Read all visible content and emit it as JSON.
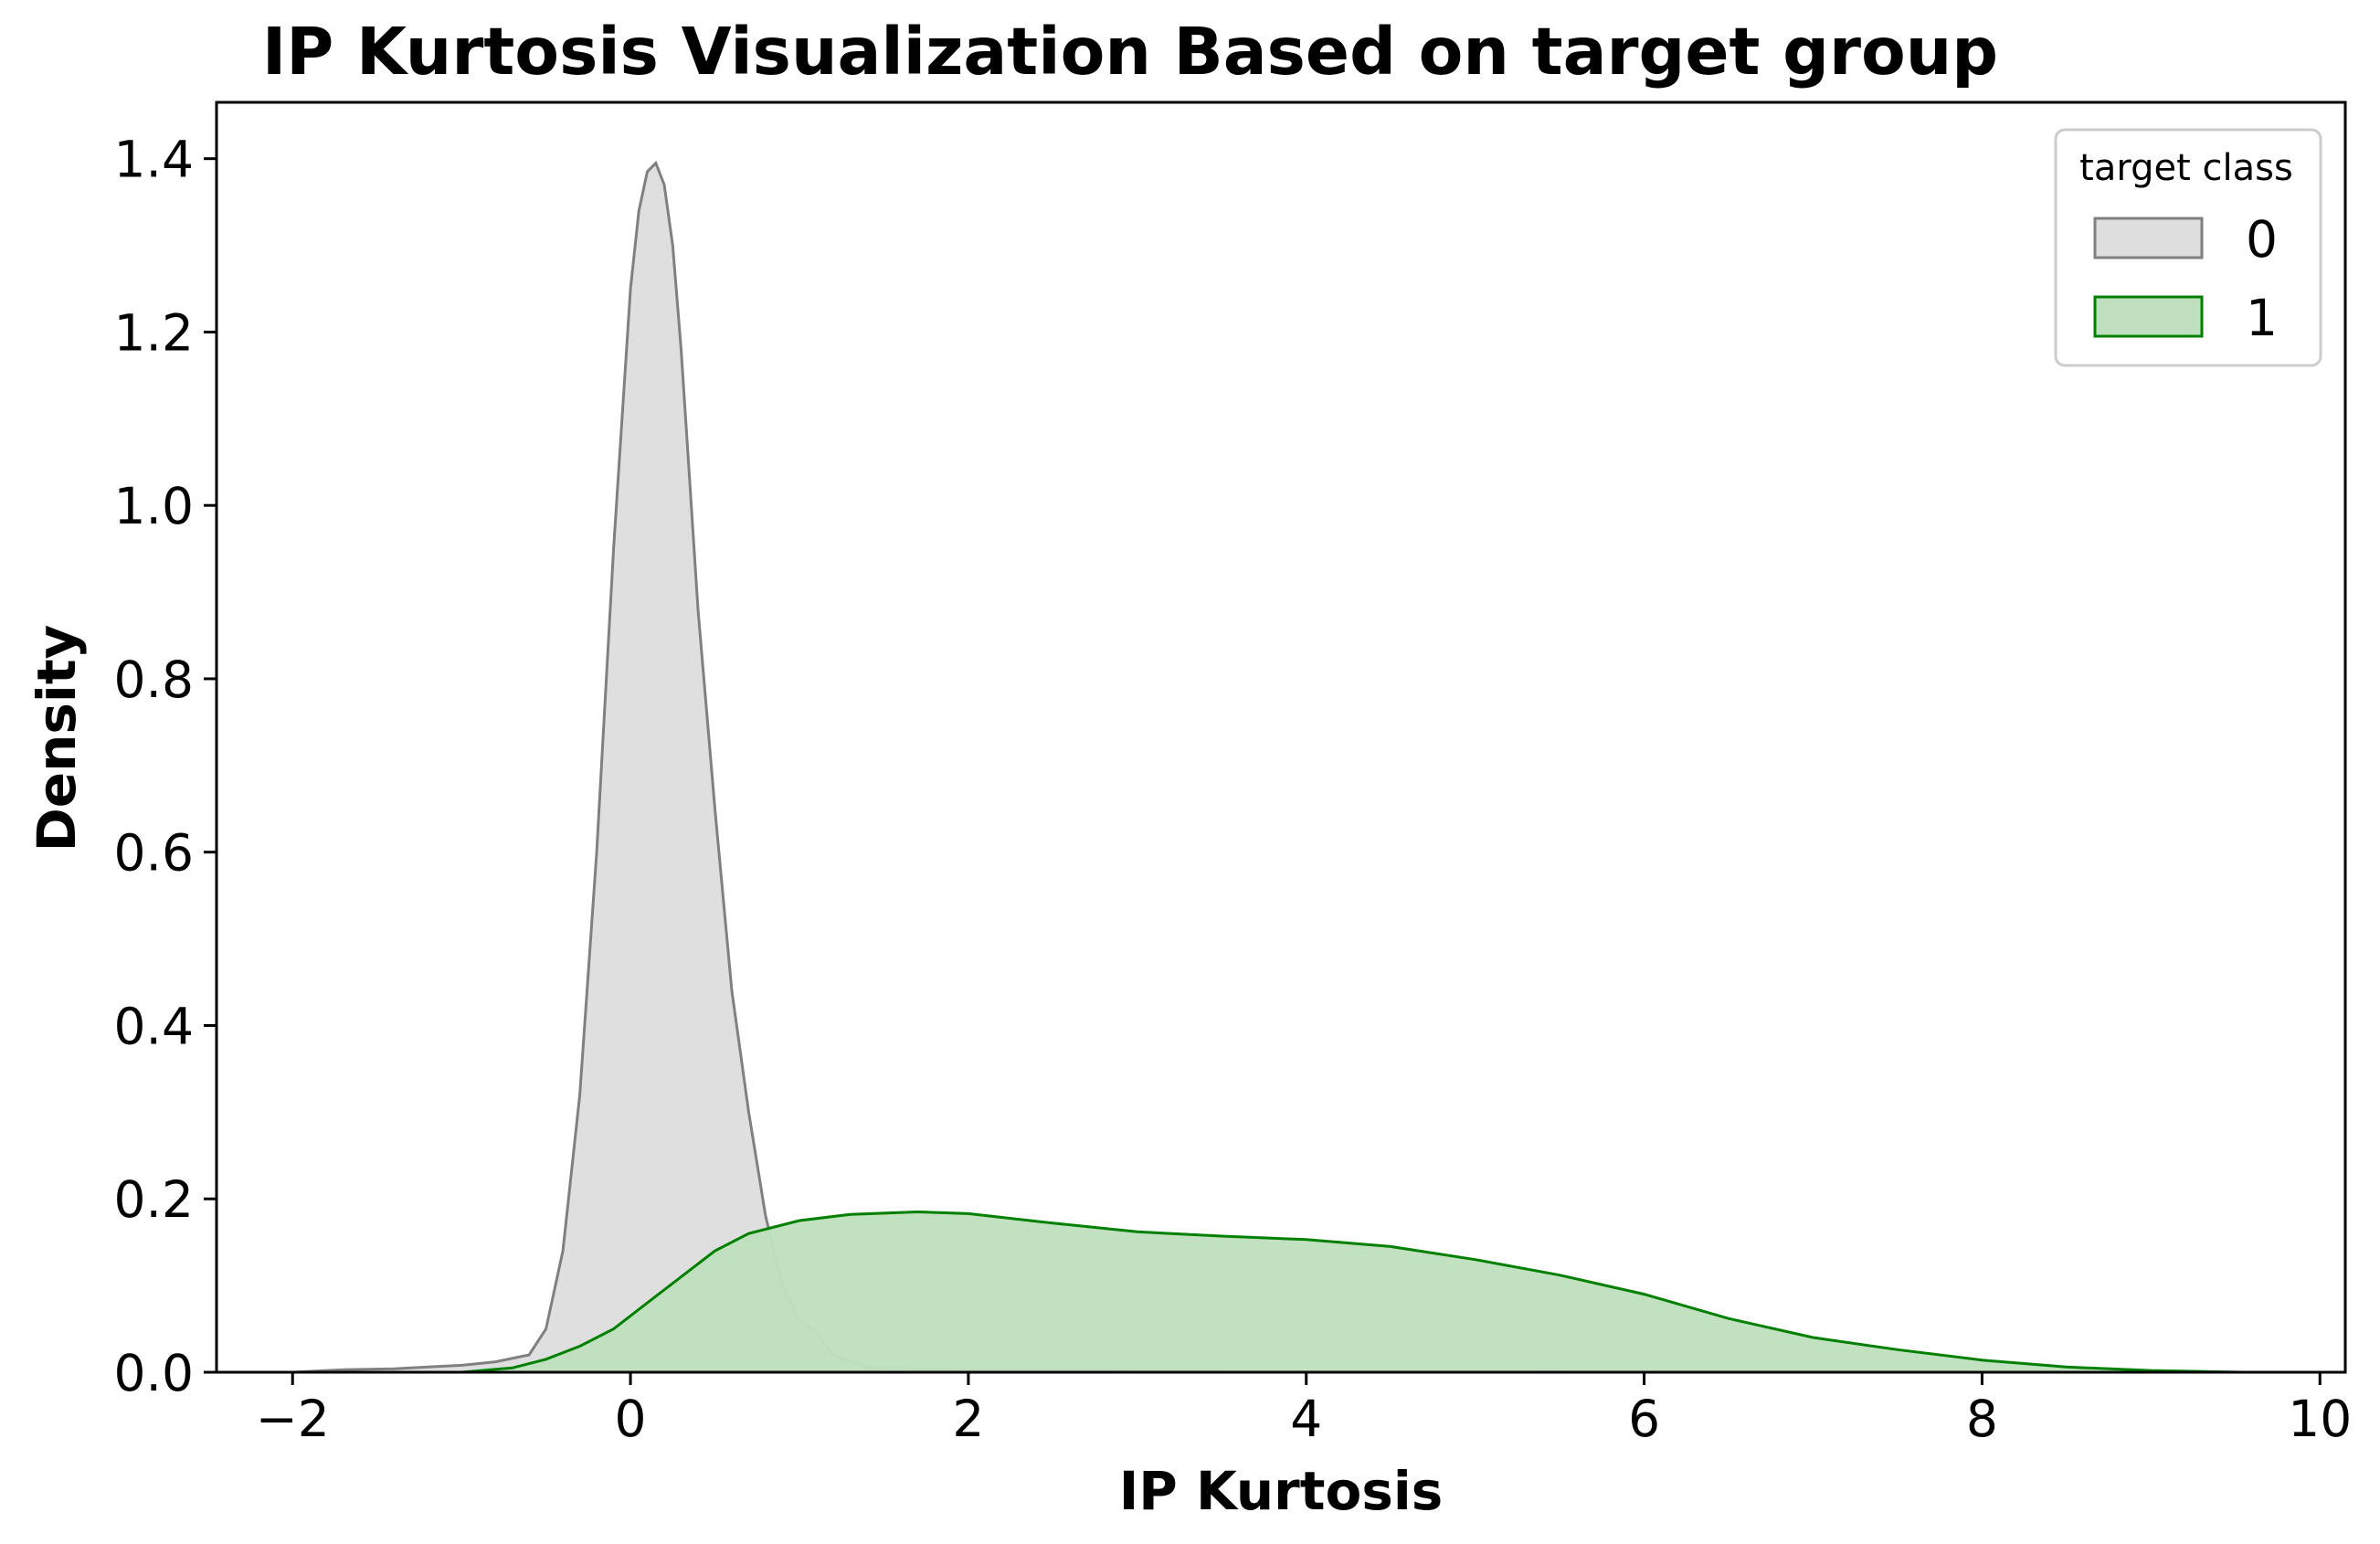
{
  "chart_data": {
    "type": "area",
    "title": "IP Kurtosis Visualization Based on target group",
    "xlabel": "IP Kurtosis",
    "ylabel": "Density",
    "xlim": [
      -2.45,
      10.15
    ],
    "ylim": [
      0,
      1.465
    ],
    "xticks": [
      -2,
      0,
      2,
      4,
      6,
      8,
      10
    ],
    "xtick_labels": [
      "−2",
      "0",
      "2",
      "4",
      "6",
      "8",
      "10"
    ],
    "yticks": [
      0.0,
      0.2,
      0.4,
      0.6,
      0.8,
      1.0,
      1.2,
      1.4
    ],
    "ytick_labels": [
      "0.0",
      "0.2",
      "0.4",
      "0.6",
      "0.8",
      "1.0",
      "1.2",
      "1.4"
    ],
    "grid": false,
    "legend": {
      "title": "target class",
      "position": "top-right"
    },
    "series": [
      {
        "name": "0",
        "line_color": "#808080",
        "fill_color": "#dedede",
        "points": [
          [
            -2.0,
            0.0
          ],
          [
            -1.7,
            0.003
          ],
          [
            -1.4,
            0.004
          ],
          [
            -1.2,
            0.006
          ],
          [
            -1.0,
            0.008
          ],
          [
            -0.8,
            0.012
          ],
          [
            -0.6,
            0.02
          ],
          [
            -0.5,
            0.05
          ],
          [
            -0.4,
            0.14
          ],
          [
            -0.3,
            0.32
          ],
          [
            -0.2,
            0.6
          ],
          [
            -0.1,
            0.95
          ],
          [
            0.0,
            1.25
          ],
          [
            0.05,
            1.34
          ],
          [
            0.1,
            1.385
          ],
          [
            0.15,
            1.395
          ],
          [
            0.2,
            1.37
          ],
          [
            0.25,
            1.3
          ],
          [
            0.3,
            1.18
          ],
          [
            0.35,
            1.03
          ],
          [
            0.4,
            0.88
          ],
          [
            0.5,
            0.65
          ],
          [
            0.6,
            0.44
          ],
          [
            0.7,
            0.3
          ],
          [
            0.8,
            0.18
          ],
          [
            0.9,
            0.1
          ],
          [
            1.0,
            0.06
          ],
          [
            1.1,
            0.045
          ],
          [
            1.2,
            0.02
          ],
          [
            1.4,
            0.006
          ],
          [
            1.7,
            0.004
          ],
          [
            2.0,
            0.003
          ],
          [
            2.5,
            0.003
          ],
          [
            3.0,
            0.002
          ],
          [
            4.0,
            0.001
          ],
          [
            5.0,
            0.001
          ],
          [
            6.0,
            0.0
          ],
          [
            7.0,
            0.0
          ],
          [
            8.0,
            0.0
          ],
          [
            9.55,
            0.0
          ]
        ]
      },
      {
        "name": "1",
        "line_color": "#008000",
        "fill_color": "#bfe0bf",
        "points": [
          [
            -1.0,
            0.0
          ],
          [
            -0.7,
            0.005
          ],
          [
            -0.5,
            0.015
          ],
          [
            -0.3,
            0.03
          ],
          [
            -0.1,
            0.05
          ],
          [
            0.1,
            0.08
          ],
          [
            0.3,
            0.11
          ],
          [
            0.5,
            0.14
          ],
          [
            0.7,
            0.16
          ],
          [
            1.0,
            0.175
          ],
          [
            1.3,
            0.182
          ],
          [
            1.7,
            0.185
          ],
          [
            2.0,
            0.183
          ],
          [
            2.5,
            0.172
          ],
          [
            3.0,
            0.162
          ],
          [
            3.5,
            0.157
          ],
          [
            4.0,
            0.153
          ],
          [
            4.5,
            0.145
          ],
          [
            5.0,
            0.13
          ],
          [
            5.5,
            0.112
          ],
          [
            6.0,
            0.09
          ],
          [
            6.5,
            0.062
          ],
          [
            7.0,
            0.04
          ],
          [
            7.5,
            0.026
          ],
          [
            8.0,
            0.014
          ],
          [
            8.5,
            0.006
          ],
          [
            9.0,
            0.002
          ],
          [
            9.55,
            0.0
          ]
        ]
      }
    ]
  }
}
